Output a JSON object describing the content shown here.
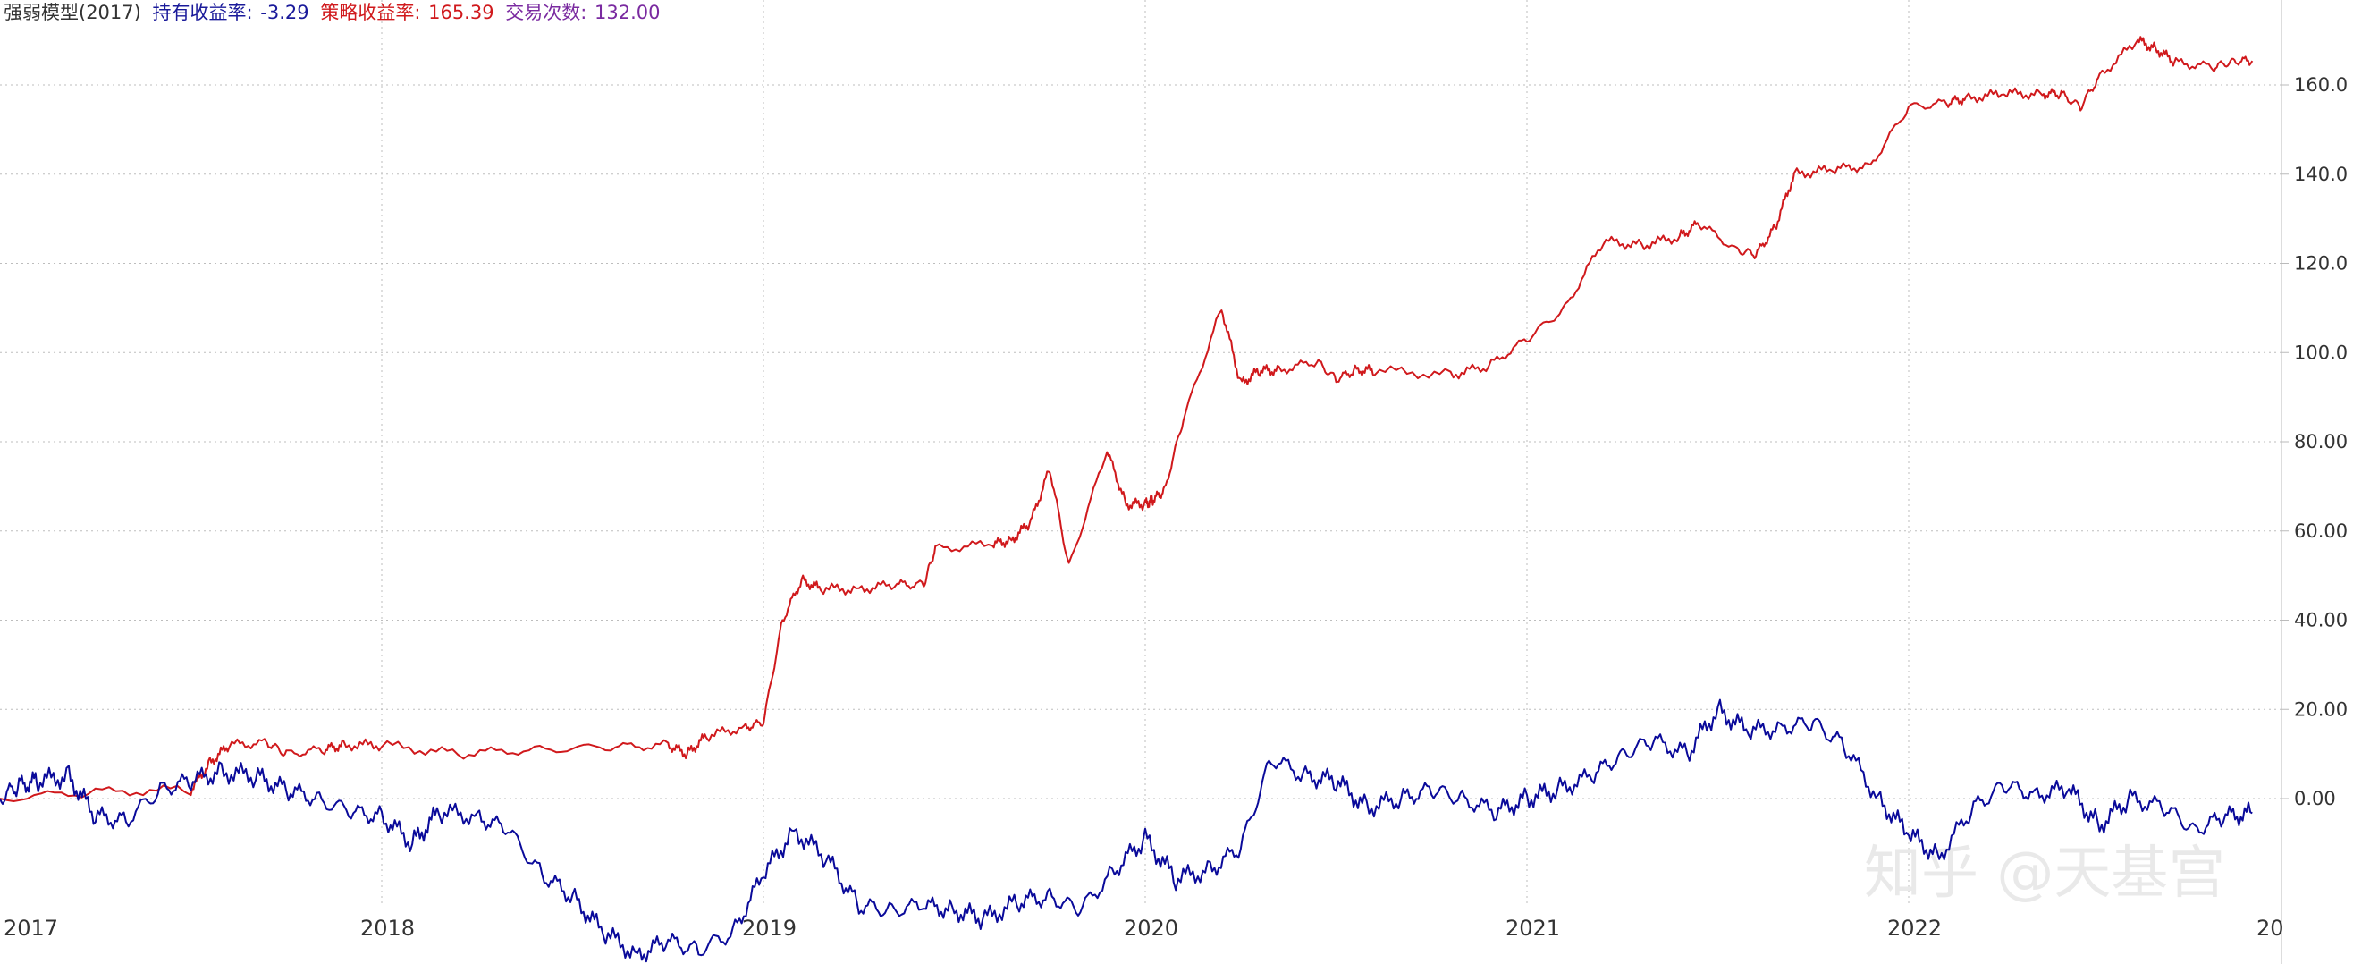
{
  "header": {
    "name": "强弱模型(2017)",
    "hold_label": "持有收益率:",
    "hold_value": "-3.29",
    "strat_label": "策略收益率:",
    "strat_value": "165.39",
    "trades_label": "交易次数:",
    "trades_value": "132.00"
  },
  "watermark": "知乎 @天基宫",
  "colors": {
    "strategy": "#d0191c",
    "hold": "#0a0a9a",
    "hold_label": "#1a1a9a",
    "trades": "#7a2aa0",
    "grid": "#bdbdbd",
    "axis": "#bbbbbb"
  },
  "chart_data": {
    "type": "line",
    "x_start": "2017",
    "x_end": "2022-11",
    "x_ticks": [
      "2017",
      "2018",
      "2019",
      "2020",
      "2021",
      "2022",
      "20"
    ],
    "y_ticks": [
      "0.00",
      "20.00",
      "40.00",
      "60.00",
      "80.00",
      "100.0",
      "120.0",
      "140.0",
      "160.0"
    ],
    "ylim": [
      -36,
      172
    ],
    "grid": true,
    "series": [
      {
        "name": "策略收益率",
        "color": "#d0191c",
        "x": [
          2017.0,
          2017.25,
          2017.5,
          2017.55,
          2017.6,
          2017.7,
          2017.75,
          2017.85,
          2017.9,
          2018.0,
          2018.2,
          2018.4,
          2018.6,
          2018.75,
          2018.8,
          2018.85,
          2018.95,
          2019.0,
          2019.05,
          2019.1,
          2019.15,
          2019.25,
          2019.35,
          2019.42,
          2019.45,
          2019.6,
          2019.65,
          2019.7,
          2019.75,
          2019.8,
          2019.9,
          2019.95,
          2020.0,
          2020.02,
          2020.05,
          2020.1,
          2020.2,
          2020.25,
          2020.3,
          2020.35,
          2020.45,
          2020.5,
          2020.55,
          2020.6,
          2020.8,
          2020.9,
          2021.0,
          2021.1,
          2021.2,
          2021.3,
          2021.4,
          2021.45,
          2021.55,
          2021.6,
          2021.65,
          2021.7,
          2021.8,
          2021.9,
          2022.0,
          2022.1,
          2022.15,
          2022.25,
          2022.35,
          2022.4,
          2022.45,
          2022.5,
          2022.6,
          2022.65,
          2022.7,
          2022.8,
          2022.85,
          2022.9
        ],
        "y": [
          0.0,
          1.5,
          2.0,
          8.0,
          12.0,
          12.5,
          10.0,
          11.0,
          12.0,
          12.0,
          10.0,
          11.0,
          11.5,
          12.0,
          10.0,
          14.0,
          16.0,
          17.0,
          40.0,
          49.0,
          47.0,
          47.0,
          48.0,
          48.0,
          56.0,
          57.0,
          58.0,
          62.0,
          74.0,
          52.0,
          78.0,
          66.0,
          66.0,
          67.0,
          69.0,
          85.0,
          110.0,
          93.0,
          96.0,
          96.0,
          98.0,
          94.0,
          96.0,
          96.0,
          95.0,
          97.0,
          103.0,
          110.0,
          125.0,
          124.0,
          126.0,
          129.0,
          123.0,
          122.0,
          128.0,
          140.0,
          141.0,
          142.0,
          155.0,
          156.0,
          157.0,
          158.0,
          158.0,
          158.0,
          155.0,
          162.0,
          170.0,
          168.0,
          165.0,
          164.0,
          165.39,
          165.39
        ]
      },
      {
        "name": "持有收益率",
        "color": "#0a0a9a",
        "x": [
          2017.0,
          2017.05,
          2017.1,
          2017.18,
          2017.25,
          2017.33,
          2017.42,
          2017.5,
          2017.58,
          2017.67,
          2017.75,
          2017.83,
          2017.92,
          2018.0,
          2018.08,
          2018.15,
          2018.25,
          2018.33,
          2018.42,
          2018.5,
          2018.58,
          2018.67,
          2018.75,
          2018.83,
          2018.92,
          2019.0,
          2019.08,
          2019.17,
          2019.25,
          2019.33,
          2019.42,
          2019.5,
          2019.58,
          2019.67,
          2019.75,
          2019.83,
          2019.92,
          2020.0,
          2020.08,
          2020.17,
          2020.25,
          2020.33,
          2020.42,
          2020.5,
          2020.58,
          2020.67,
          2020.75,
          2020.83,
          2020.92,
          2021.0,
          2021.08,
          2021.17,
          2021.25,
          2021.33,
          2021.42,
          2021.5,
          2021.58,
          2021.67,
          2021.75,
          2021.83,
          2021.92,
          2022.0,
          2022.08,
          2022.17,
          2022.25,
          2022.33,
          2022.42,
          2022.5,
          2022.58,
          2022.67,
          2022.75,
          2022.83,
          2022.9
        ],
        "y": [
          0.0,
          3.0,
          4.0,
          5.0,
          -4.0,
          -5.0,
          2.0,
          4.0,
          6.0,
          5.0,
          2.0,
          0.0,
          -3.0,
          -4.0,
          -10.0,
          -3.0,
          -4.0,
          -7.0,
          -17.0,
          -22.0,
          -30.0,
          -35.0,
          -32.0,
          -34.0,
          -30.0,
          -17.0,
          -7.0,
          -14.0,
          -24.0,
          -25.0,
          -24.0,
          -25.0,
          -27.0,
          -23.0,
          -22.0,
          -25.0,
          -16.0,
          -9.0,
          -18.0,
          -16.0,
          -11.0,
          9.0,
          5.0,
          4.0,
          -2.0,
          0.0,
          2.0,
          0.0,
          -3.0,
          0.0,
          2.0,
          5.0,
          10.0,
          13.0,
          10.0,
          20.0,
          15.0,
          16.0,
          17.0,
          12.0,
          0.0,
          -8.0,
          -13.0,
          -2.0,
          3.0,
          1.0,
          2.0,
          -6.0,
          0.0,
          -2.0,
          -7.0,
          -4.0,
          -3.29
        ]
      }
    ]
  }
}
